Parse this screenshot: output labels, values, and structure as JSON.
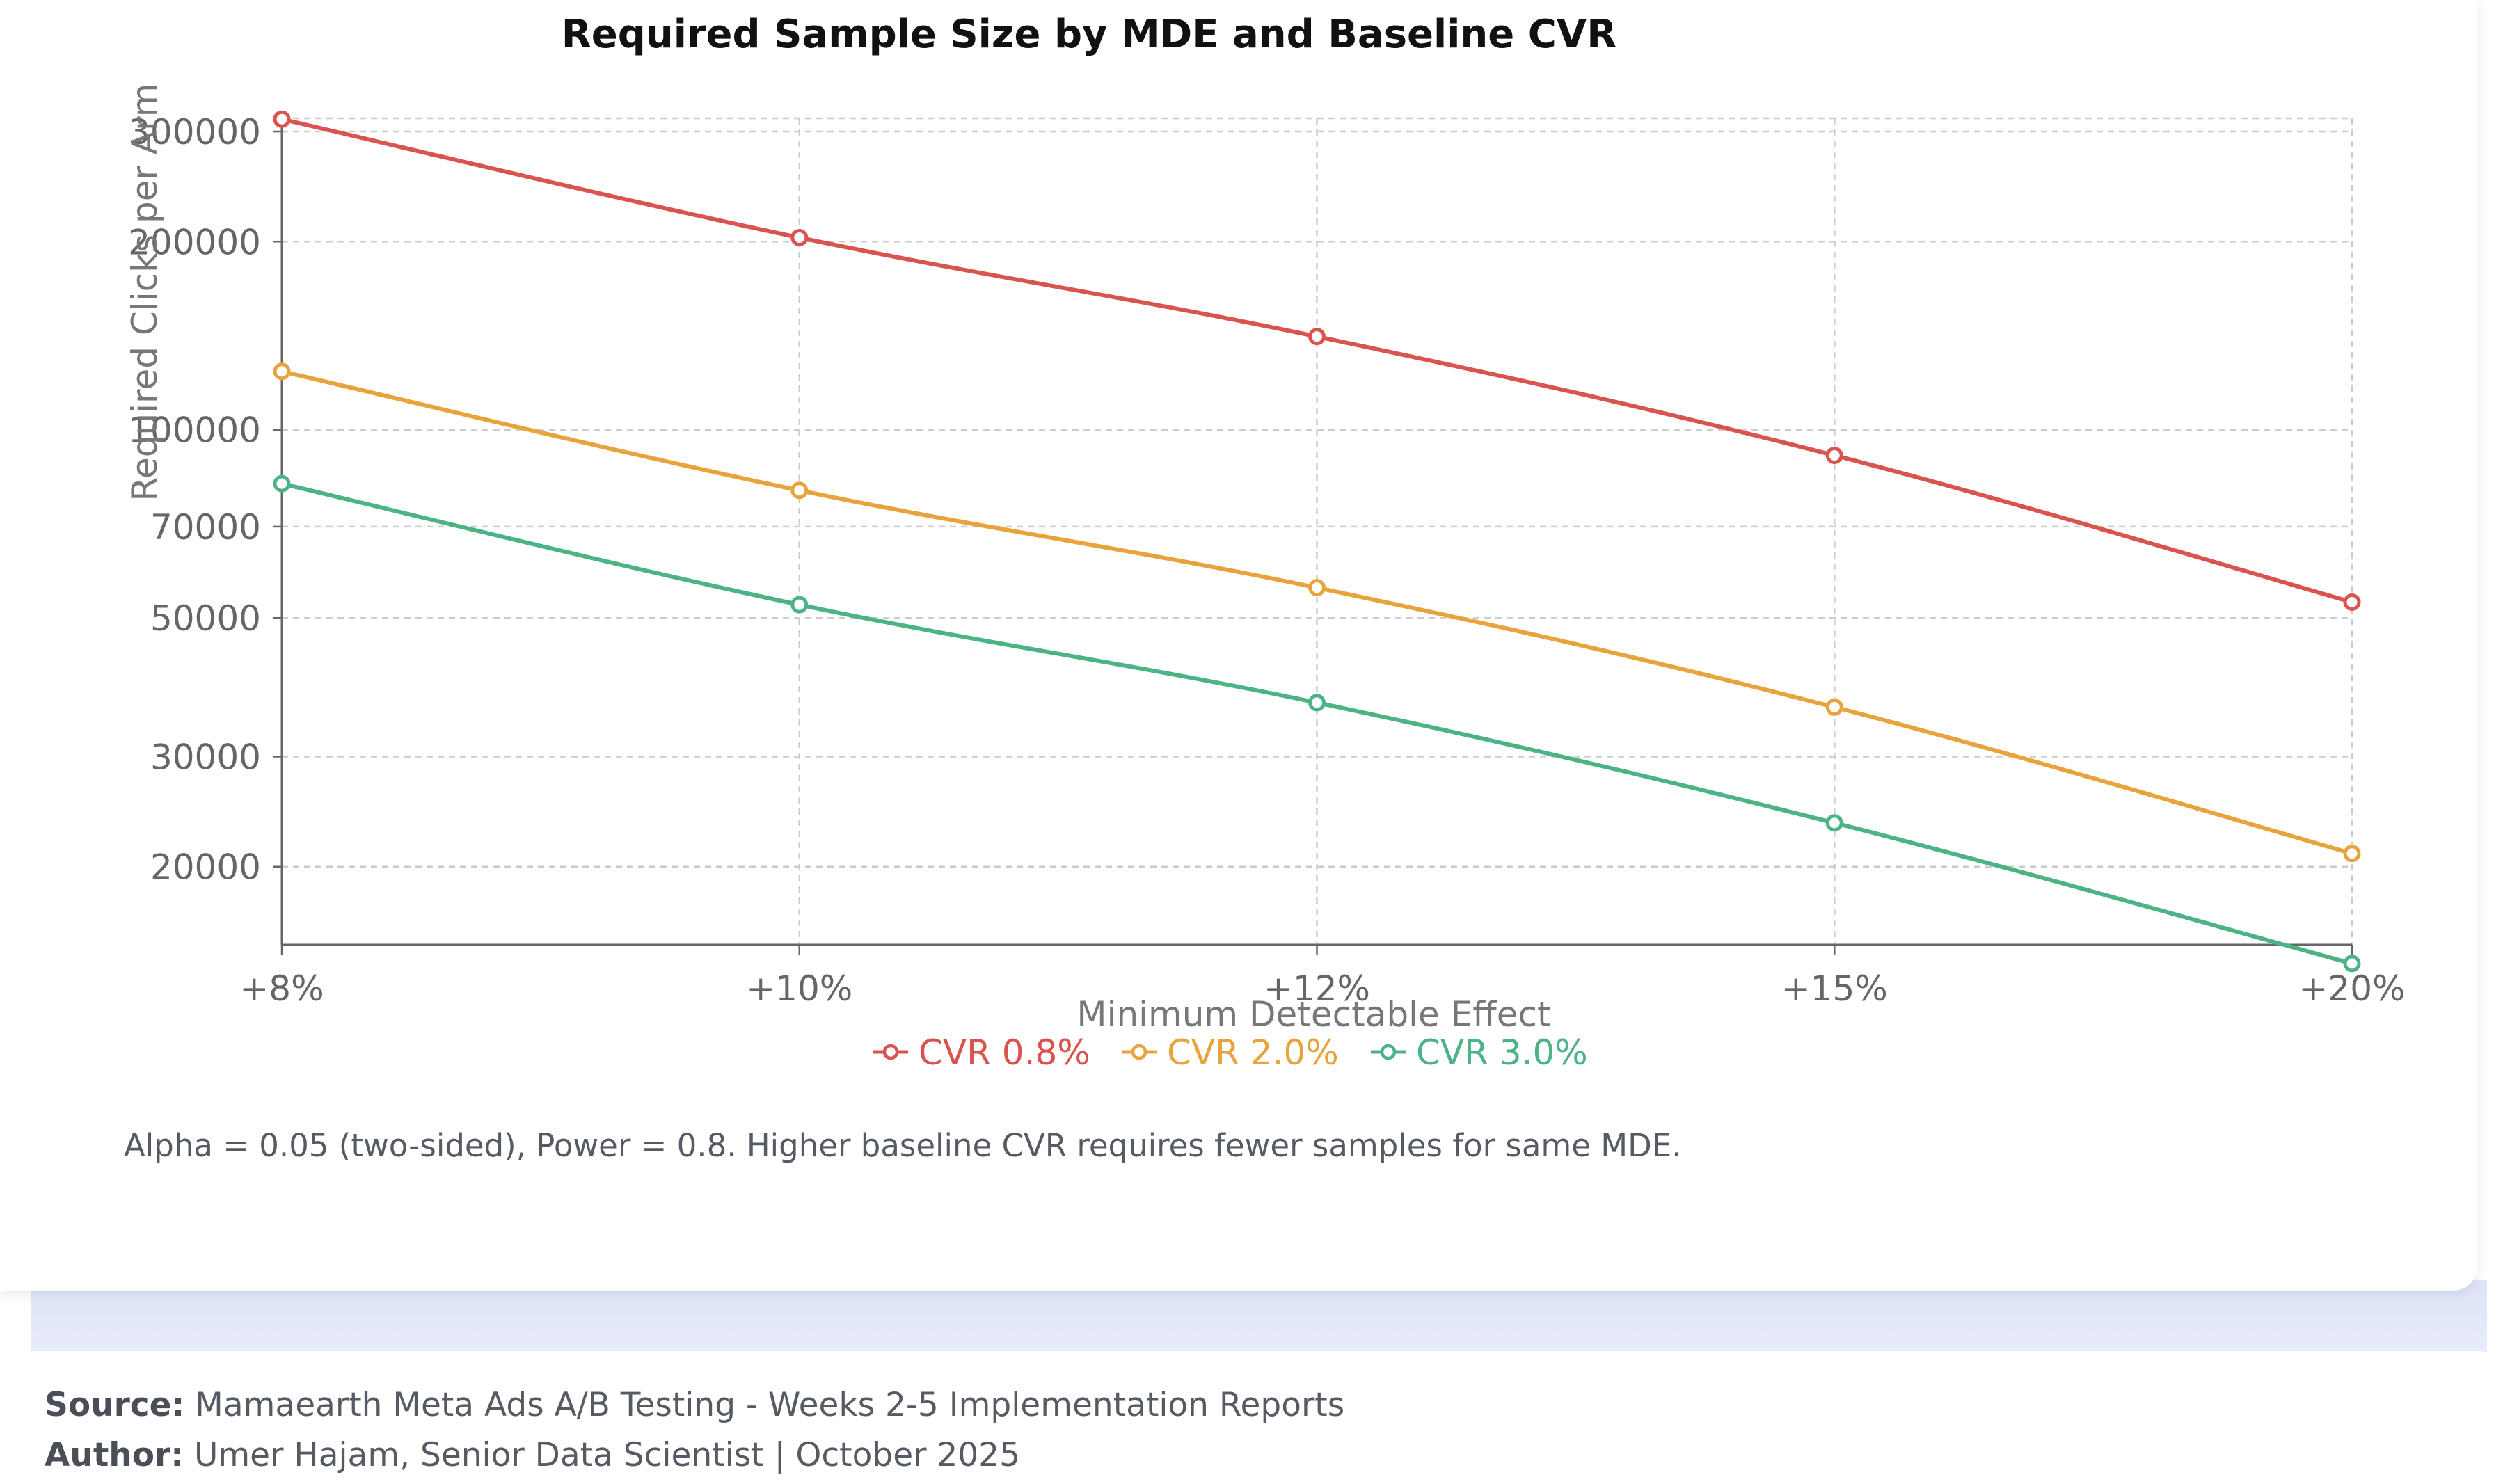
{
  "chart_data": {
    "type": "line",
    "title": "Required Sample Size by MDE and Baseline CVR",
    "xlabel": "Minimum Detectable Effect",
    "ylabel": "Required Clicks per Arm",
    "yscale": "log",
    "ylim": [
      15000,
      315000
    ],
    "yticks": [
      20000,
      30000,
      50000,
      70000,
      100000,
      200000,
      300000
    ],
    "categories": [
      "+8%",
      "+10%",
      "+12%",
      "+15%",
      "+20%"
    ],
    "series": [
      {
        "name": "CVR 0.8%",
        "color": "#d9534f",
        "values": [
          314000,
          203000,
          141000,
          91000,
          53000
        ]
      },
      {
        "name": "CVR 2.0%",
        "color": "#e8a33d",
        "values": [
          124000,
          80000,
          55900,
          36000,
          21000
        ]
      },
      {
        "name": "CVR 3.0%",
        "color": "#4cb386",
        "values": [
          82000,
          52500,
          36600,
          23500,
          14000
        ]
      }
    ],
    "legend": "bottom-center",
    "grid": true
  },
  "note": "Alpha = 0.05 (two-sided), Power = 0.8. Higher baseline CVR requires fewer samples for same MDE.",
  "footer": {
    "source_label": "Source:",
    "source_text": "Mamaearth Meta Ads A/B Testing - Weeks 2-5 Implementation Reports",
    "author_label": "Author:",
    "author_text": "Umer Hajam, Senior Data Scientist | October 2025"
  }
}
